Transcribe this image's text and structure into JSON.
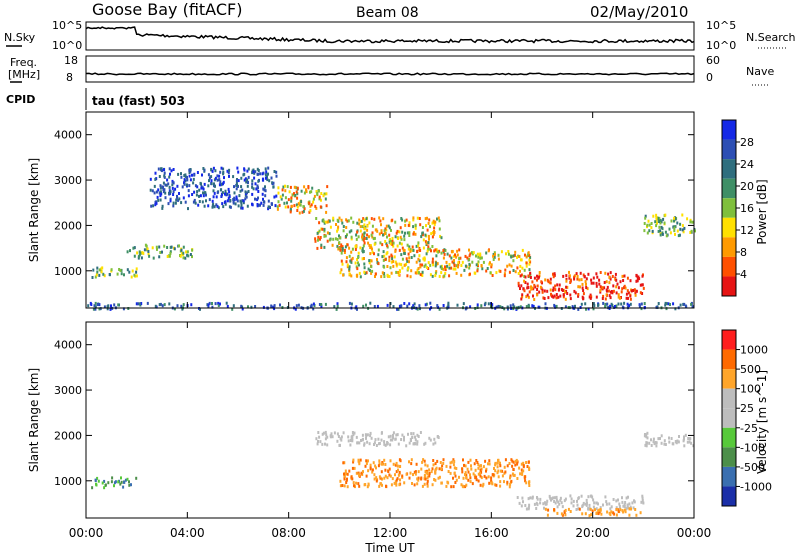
{
  "header": {
    "station": "Goose Bay (fitACF)",
    "beam": "Beam 08",
    "date": "02/May/2010"
  },
  "side_labels": {
    "nsky": "N.Sky",
    "nsearch": "N.Search",
    "freq_line1": "Freq.",
    "freq_line2": "[MHz]",
    "nave": "Nave",
    "cpid": "CPID",
    "cpid_value": "tau (fast) 503"
  },
  "noise_panel": {
    "left_ticks": [
      "10^5",
      "10^0"
    ],
    "right_ticks": [
      "10^5",
      "10^0"
    ]
  },
  "freq_panel": {
    "left_ticks": [
      "18",
      "8"
    ],
    "right_ticks": [
      "60",
      "0"
    ]
  },
  "colors": {
    "power_scale": [
      "#1428e6",
      "#2d4fb4",
      "#2f6e7e",
      "#3f8f66",
      "#7fbf3c",
      "#ffe000",
      "#ff9a00",
      "#ff5000",
      "#e61414"
    ],
    "velocity_scale": [
      "#1b2fa8",
      "#3a6fb0",
      "#4c8f4a",
      "#57c93a",
      "#bdbdbd",
      "#bdbdbd",
      "#ffa52a",
      "#ff6a00",
      "#ff1e1e"
    ]
  },
  "chart_data": [
    {
      "type": "heatmap",
      "title": "",
      "xlabel": "",
      "ylabel": "Slant Range [km]",
      "x_ticks": [
        "00:00",
        "04:00",
        "08:00",
        "12:00",
        "16:00",
        "20:00",
        "00:00"
      ],
      "y_ticks": [
        "1000",
        "2000",
        "3000",
        "4000"
      ],
      "ylim": [
        180,
        4500
      ],
      "colorbar": {
        "label": "Power [dB]",
        "ticks": [
          "28",
          "24",
          "20",
          "16",
          "12",
          "8",
          "4"
        ],
        "range": [
          0,
          32
        ]
      },
      "echo_regions": [
        {
          "t_start": 0.0,
          "t_end": 24.0,
          "r_start": 180,
          "r_end": 320,
          "level": "low-mid"
        },
        {
          "t_start": 0.2,
          "t_end": 2.0,
          "r_start": 880,
          "r_end": 1100,
          "level": "mid"
        },
        {
          "t_start": 1.6,
          "t_end": 4.2,
          "r_start": 1300,
          "r_end": 1600,
          "level": "mid"
        },
        {
          "t_start": 2.5,
          "t_end": 7.5,
          "r_start": 2400,
          "r_end": 3300,
          "level": "low"
        },
        {
          "t_start": 7.5,
          "t_end": 9.5,
          "r_start": 2300,
          "r_end": 2900,
          "level": "mid-high"
        },
        {
          "t_start": 9.0,
          "t_end": 14.0,
          "r_start": 1500,
          "r_end": 2200,
          "level": "mid-high"
        },
        {
          "t_start": 10.0,
          "t_end": 17.5,
          "r_start": 900,
          "r_end": 1500,
          "level": "mid-high"
        },
        {
          "t_start": 17.0,
          "t_end": 22.0,
          "r_start": 400,
          "r_end": 1000,
          "level": "high"
        },
        {
          "t_start": 22.0,
          "t_end": 24.0,
          "r_start": 1800,
          "r_end": 2300,
          "level": "mid"
        }
      ]
    },
    {
      "type": "heatmap",
      "title": "",
      "xlabel": "Time UT",
      "ylabel": "Slant Range [km]",
      "x_ticks": [
        "00:00",
        "04:00",
        "08:00",
        "12:00",
        "16:00",
        "20:00",
        "00:00"
      ],
      "y_ticks": [
        "1000",
        "2000",
        "3000",
        "4000"
      ],
      "ylim": [
        180,
        4500
      ],
      "colorbar": {
        "label": "Velocity [m s^-1]",
        "ticks": [
          "1000",
          "500",
          "100",
          "25",
          "-25",
          "-100",
          "-500",
          "-1000"
        ],
        "range": [
          -1000,
          1000
        ]
      },
      "echo_regions": [
        {
          "t_start": 0.2,
          "t_end": 2.0,
          "r_start": 880,
          "r_end": 1100,
          "level": "positive"
        },
        {
          "t_start": 9.0,
          "t_end": 14.0,
          "r_start": 1800,
          "r_end": 2100,
          "level": "ground-scatter"
        },
        {
          "t_start": 10.0,
          "t_end": 17.5,
          "r_start": 900,
          "r_end": 1500,
          "level": "negative"
        },
        {
          "t_start": 17.0,
          "t_end": 22.0,
          "r_start": 400,
          "r_end": 700,
          "level": "ground-scatter"
        },
        {
          "t_start": 18.0,
          "t_end": 22.0,
          "r_start": 250,
          "r_end": 420,
          "level": "negative"
        },
        {
          "t_start": 22.0,
          "t_end": 24.0,
          "r_start": 1800,
          "r_end": 2100,
          "level": "ground-scatter"
        }
      ]
    }
  ]
}
